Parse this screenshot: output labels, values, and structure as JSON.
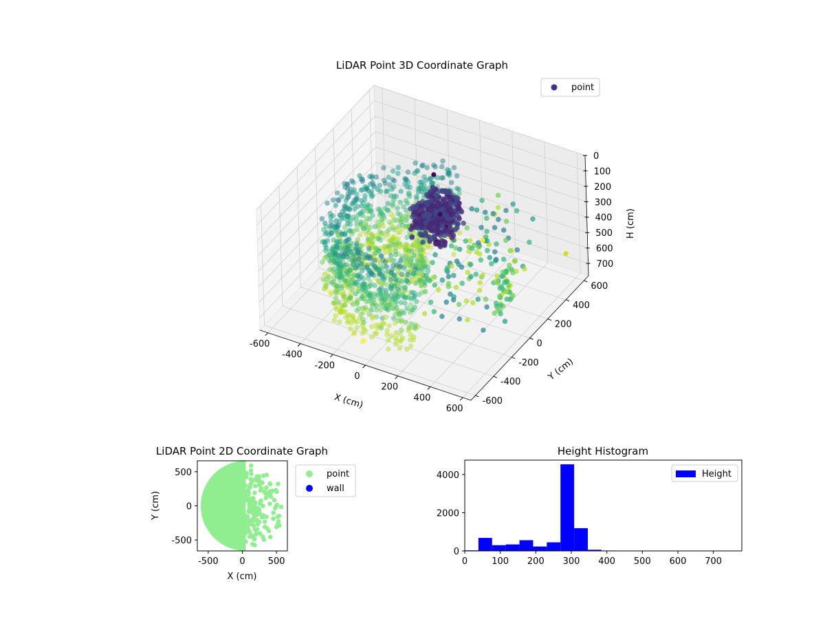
{
  "chart_data": [
    {
      "type": "scatter",
      "projection": "3d",
      "title": "LiDAR Point 3D Coordinate Graph",
      "xlabel": "X (cm)",
      "ylabel": "Y (cm)",
      "zlabel": "H (cm)",
      "xlim": [
        -650,
        650
      ],
      "ylim": [
        -650,
        650
      ],
      "zlim": [
        780,
        0
      ],
      "z_inverted": true,
      "xticks": [
        -600,
        -400,
        -200,
        0,
        200,
        400,
        600
      ],
      "yticks": [
        -600,
        -400,
        -200,
        0,
        200,
        400,
        600
      ],
      "zticks": [
        0,
        100,
        200,
        300,
        400,
        500,
        600,
        700
      ],
      "colormap": "viridis",
      "grid": true,
      "legend": {
        "position": "top-right",
        "entries": [
          {
            "label": "point",
            "color": "#46327e"
          }
        ]
      },
      "series": [
        {
          "name": "point",
          "description_ring": {
            "x_center": 0,
            "y_center": 0,
            "radius": 520,
            "h_range": [
              220,
              740
            ]
          },
          "dense_cluster": {
            "x": [
              -50,
              150
            ],
            "y": [
              -50,
              200
            ],
            "h": [
              150,
              350
            ]
          },
          "outliers": [
            {
              "x": 40,
              "y": 580,
              "h": 720,
              "color": "#fde725"
            },
            {
              "x": 600,
              "y": 500,
              "h": 560,
              "color": "#d0e11c"
            },
            {
              "x": -80,
              "y": 280,
              "h": 150,
              "color": "#440154"
            }
          ]
        }
      ]
    },
    {
      "type": "scatter",
      "title": "LiDAR Point 2D Coordinate Graph",
      "xlabel": "X (cm)",
      "ylabel": "Y (cm)",
      "xlim": [
        -660,
        660
      ],
      "ylim": [
        -660,
        660
      ],
      "xticks": [
        -500,
        0,
        500
      ],
      "yticks": [
        -500,
        0,
        500
      ],
      "grid": false,
      "legend": {
        "position": "outside-right",
        "entries": [
          {
            "label": "point",
            "color": "#90ee90"
          },
          {
            "label": "wall",
            "color": "#0000ff"
          }
        ]
      },
      "series": [
        {
          "name": "point",
          "color": "#90ee90",
          "shape": "half-disc filled left of x=100, radius ~610, scattered blobs on right side"
        },
        {
          "name": "wall",
          "color": "#0000ff",
          "points": []
        }
      ]
    },
    {
      "type": "bar",
      "title": "Height Histogram",
      "xlabel": "",
      "ylabel": "",
      "xlim": [
        0,
        780
      ],
      "ylim": [
        0,
        4750
      ],
      "xticks": [
        0,
        100,
        200,
        300,
        400,
        500,
        600,
        700
      ],
      "yticks": [
        0,
        2000,
        4000
      ],
      "bin_width": 38.5,
      "bin_edges_start": 0,
      "values": [
        30,
        680,
        300,
        340,
        560,
        230,
        450,
        4530,
        1190,
        60,
        20,
        10,
        10,
        8,
        6,
        6,
        5,
        5,
        5,
        4
      ],
      "color": "#0000ff",
      "legend": {
        "position": "top-right",
        "entries": [
          {
            "label": "Height",
            "color": "#0000ff"
          }
        ]
      }
    }
  ]
}
